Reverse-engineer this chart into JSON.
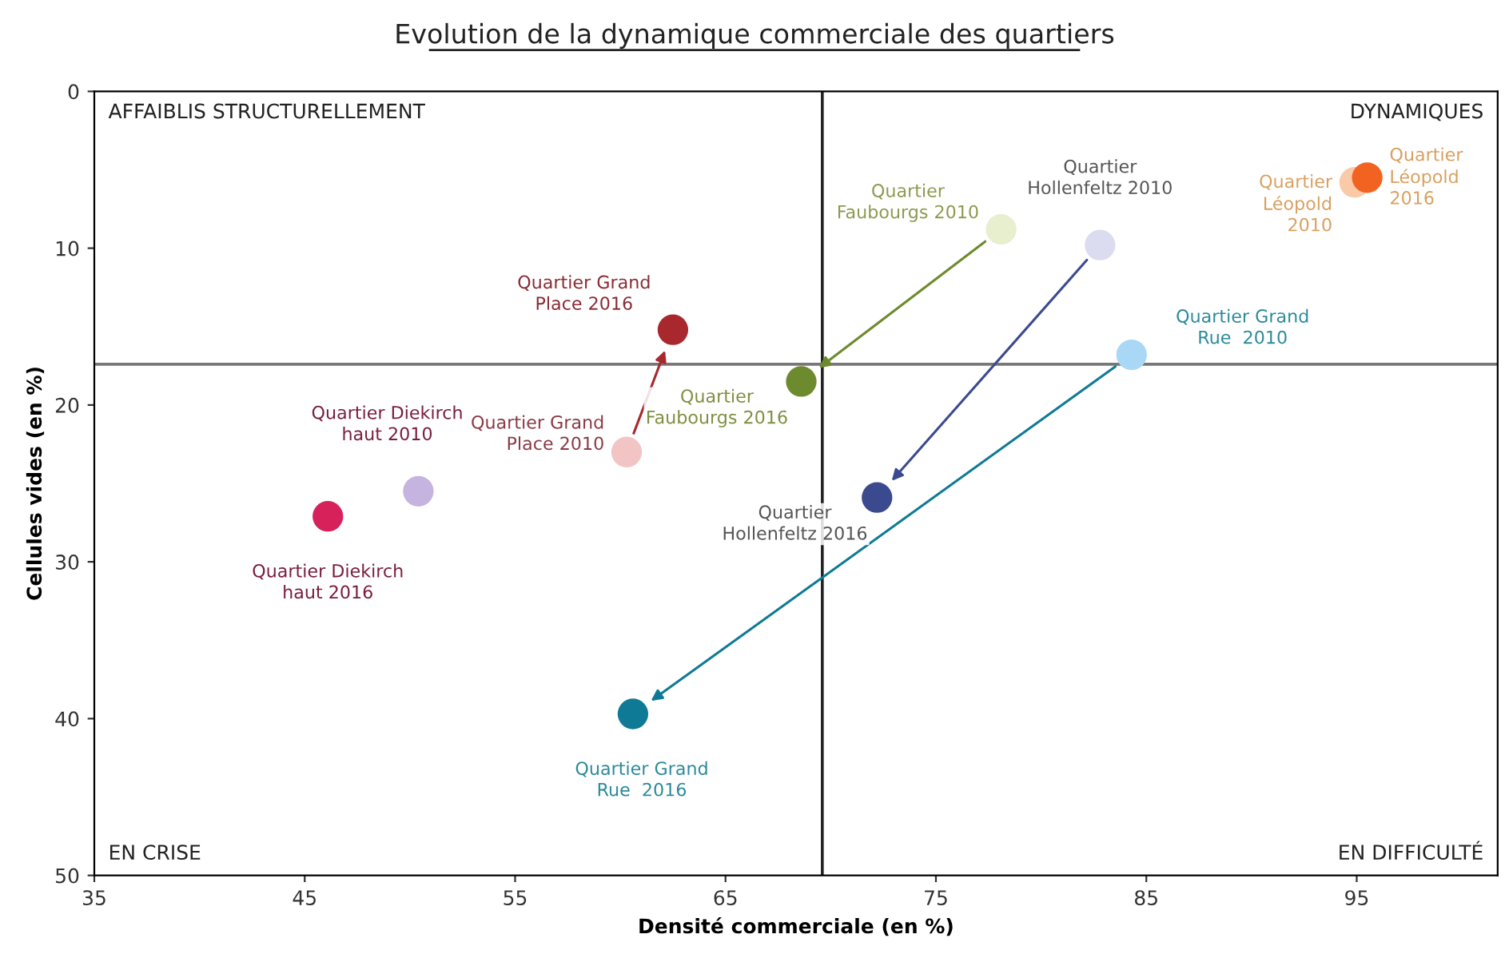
{
  "chart_data": {
    "type": "scatter",
    "title": "Evolution de la dynamique commerciale des quartiers",
    "xlabel": "Densité commerciale (en %)",
    "ylabel": "Cellules vides (en %)",
    "xlim": [
      35,
      101.7
    ],
    "xticks": [
      35,
      45,
      55,
      65,
      75,
      85,
      95
    ],
    "ylim": [
      50,
      0
    ],
    "yticks": [
      0,
      10,
      20,
      30,
      40,
      50
    ],
    "grid": false,
    "marker": "circle",
    "series": [
      {
        "x": [
          50.4,
          46.1
        ],
        "values": [
          25.5,
          27.1
        ],
        "colors": [
          "#c5b3e0",
          "#d6215a"
        ],
        "line_style": "none"
      },
      {
        "x": [
          60.3,
          62.5
        ],
        "values": [
          23.0,
          15.2
        ],
        "colors": [
          "#f2c4c4",
          "#a8282e"
        ],
        "line_style": "solid"
      },
      {
        "x": [
          78.1,
          68.6
        ],
        "values": [
          8.8,
          18.5
        ],
        "colors": [
          "#e8efcf",
          "#6e8a2e"
        ],
        "line_style": "solid"
      },
      {
        "x": [
          82.8,
          72.2
        ],
        "values": [
          9.8,
          25.9
        ],
        "colors": [
          "#dcdcf0",
          "#3b4a8f"
        ],
        "line_style": "solid"
      },
      {
        "x": [
          84.3,
          60.6
        ],
        "values": [
          16.8,
          39.7
        ],
        "colors": [
          "#a9d8f7",
          "#0f7a96"
        ],
        "line_style": "solid"
      },
      {
        "x": [
          94.9,
          95.5
        ],
        "values": [
          5.8,
          5.5
        ],
        "colors": [
          "#f9c9a8",
          "#f26322"
        ],
        "line_style": "none"
      }
    ],
    "ref_lines": [
      {
        "axis": "x",
        "value": 69.6,
        "color": "#222222"
      },
      {
        "axis": "y",
        "value": 17.4,
        "color": "#777777"
      }
    ],
    "annotations": [
      "AFFAIBLIS STRUCTURELLEMENT",
      "DYNAMIQUES",
      "EN CRISE",
      "EN DIFFICULTÉ",
      {
        "text": "Quartier Diekirch\nhaut 2010",
        "x": 50.4,
        "y": 25.5
      },
      {
        "text": "Quartier Diekirch\nhaut 2016",
        "x": 46.1,
        "y": 27.1
      },
      {
        "text": "Quartier Grand\nPlace 2010",
        "x": 60.3,
        "y": 23.0
      },
      {
        "text": "Quartier Grand\nPlace 2016",
        "x": 62.5,
        "y": 15.2
      },
      {
        "text": "Quartier\nFaubourgs 2010",
        "x": 78.1,
        "y": 8.8
      },
      {
        "text": "Quartier\nFaubourgs 2016",
        "x": 68.6,
        "y": 18.5
      },
      {
        "text": "Quartier\nHollenfeltz 2010",
        "x": 82.8,
        "y": 9.8
      },
      {
        "text": "Quartier\nHollenfeltz 2016",
        "x": 72.2,
        "y": 25.9
      },
      {
        "text": "Quartier Grand\nRue  2010",
        "x": 84.3,
        "y": 16.8
      },
      {
        "text": "Quartier Grand\nRue  2016",
        "x": 60.6,
        "y": 39.7
      },
      {
        "text": "Quartier\nLéopold\n2010",
        "x": 94.9,
        "y": 5.8
      },
      {
        "text": "Quartier\nLéopold\n2016",
        "x": 95.5,
        "y": 5.5
      }
    ]
  }
}
